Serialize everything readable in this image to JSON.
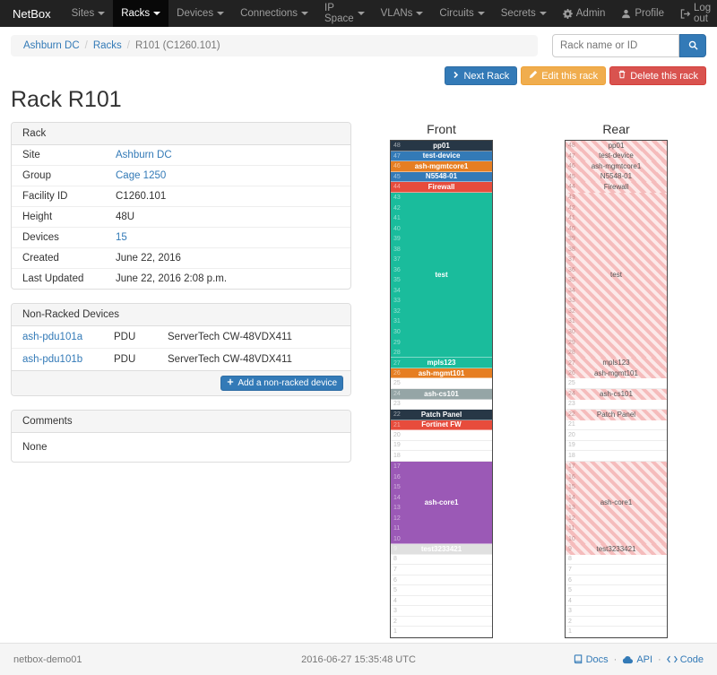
{
  "navbar": {
    "brand": "NetBox",
    "items": [
      {
        "label": "Sites",
        "active": false
      },
      {
        "label": "Racks",
        "active": true
      },
      {
        "label": "Devices",
        "active": false
      },
      {
        "label": "Connections",
        "active": false
      },
      {
        "label": "IP Space",
        "active": false
      },
      {
        "label": "VLANs",
        "active": false
      },
      {
        "label": "Circuits",
        "active": false
      },
      {
        "label": "Secrets",
        "active": false
      }
    ],
    "right_items": [
      {
        "label": "Admin",
        "icon": "gear"
      },
      {
        "label": "Profile",
        "icon": "user"
      },
      {
        "label": "Log out",
        "icon": "log-out"
      }
    ]
  },
  "breadcrumb": {
    "items": [
      {
        "label": "Ashburn DC",
        "link": true
      },
      {
        "label": "Racks",
        "link": true
      },
      {
        "label": "R101 (C1260.101)",
        "link": false
      }
    ]
  },
  "search": {
    "placeholder": "Rack name or ID",
    "value": ""
  },
  "actions": {
    "next_rack": "Next Rack",
    "edit": "Edit this rack",
    "delete": "Delete this rack"
  },
  "page_title": "Rack R101",
  "rack_panel": {
    "title": "Rack",
    "rows": [
      {
        "label": "Site",
        "value": "Ashburn DC",
        "link": true
      },
      {
        "label": "Group",
        "value": "Cage 1250",
        "link": true
      },
      {
        "label": "Facility ID",
        "value": "C1260.101",
        "link": false
      },
      {
        "label": "Height",
        "value": "48U",
        "link": false
      },
      {
        "label": "Devices",
        "value": "15",
        "link": true
      },
      {
        "label": "Created",
        "value": "June 22, 2016",
        "link": false
      },
      {
        "label": "Last Updated",
        "value": "June 22, 2016 2:08 p.m.",
        "link": false
      }
    ]
  },
  "non_racked": {
    "title": "Non-Racked Devices",
    "devices": [
      {
        "name": "ash-pdu101a",
        "role": "PDU",
        "type": "ServerTech CW-48VDX411"
      },
      {
        "name": "ash-pdu101b",
        "role": "PDU",
        "type": "ServerTech CW-48VDX411"
      }
    ],
    "add_button": "Add a non-racked device"
  },
  "comments": {
    "title": "Comments",
    "body": "None"
  },
  "elevation": {
    "front_title": "Front",
    "rear_title": "Rear",
    "units_total": 48,
    "blocks": [
      {
        "top_u": 48,
        "size": 1,
        "label": "pp01",
        "color": "#273746",
        "text": "#ffffff",
        "rear": true
      },
      {
        "top_u": 47,
        "size": 1,
        "label": "test-device",
        "color": "#337ab7",
        "text": "#ffffff",
        "rear": true
      },
      {
        "top_u": 46,
        "size": 1,
        "label": "ash-mgmtcore1",
        "color": "#e67e22",
        "text": "#ffffff",
        "rear": true
      },
      {
        "top_u": 45,
        "size": 1,
        "label": "N5548-01",
        "color": "#337ab7",
        "text": "#ffffff",
        "rear": true
      },
      {
        "top_u": 44,
        "size": 1,
        "label": "Firewall",
        "color": "#e74c3c",
        "text": "#ffffff",
        "rear": true
      },
      {
        "top_u": 43,
        "size": 16,
        "label": "test",
        "color": "#1abc9c",
        "text": "#ffffff",
        "rear": true
      },
      {
        "top_u": 27,
        "size": 1,
        "label": "mpls123",
        "color": "#1abc9c",
        "text": "#ffffff",
        "rear": true
      },
      {
        "top_u": 26,
        "size": 1,
        "label": "ash-mgmt101",
        "color": "#e67e22",
        "text": "#ffffff",
        "rear": true
      },
      {
        "top_u": 24,
        "size": 1,
        "label": "ash-cs101",
        "color": "#95a5a6",
        "text": "#ffffff",
        "rear": true
      },
      {
        "top_u": 22,
        "size": 1,
        "label": "Patch Panel",
        "color": "#273746",
        "text": "#ffffff",
        "rear": true
      },
      {
        "top_u": 21,
        "size": 1,
        "label": "Fortinet FW",
        "color": "#e74c3c",
        "text": "#ffffff",
        "rear": false
      },
      {
        "top_u": 17,
        "size": 8,
        "label": "ash-core1",
        "color": "#9b59b6",
        "text": "#ffffff",
        "rear": true
      },
      {
        "top_u": 9,
        "size": 1,
        "label": "test3233421",
        "color": "#e0e0e0",
        "text": "#ffffff",
        "rear": true
      }
    ]
  },
  "footer": {
    "hostname": "netbox-demo01",
    "timestamp": "2016-06-27 15:35:48 UTC",
    "links": [
      {
        "label": "Docs",
        "icon": "book"
      },
      {
        "label": "API",
        "icon": "cloud"
      },
      {
        "label": "Code",
        "icon": "code"
      }
    ]
  },
  "colors": {
    "accent_link": "#337ab7",
    "navbar_bg": "#222222",
    "warning": "#f0ad4e",
    "danger": "#d9534f"
  }
}
